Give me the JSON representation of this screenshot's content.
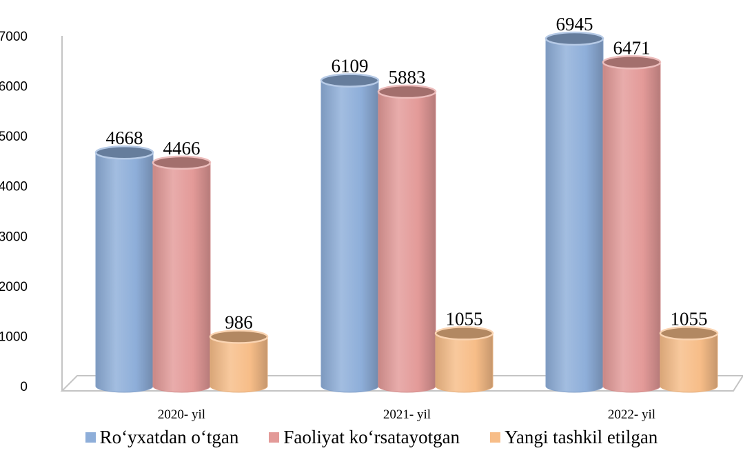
{
  "chart_data": {
    "type": "bar",
    "categories": [
      "2020- yil",
      "2021- yil",
      "2022- yil"
    ],
    "series": [
      {
        "name": "Ro‘yxatdan o‘tgan",
        "values": [
          4668,
          6109,
          6945
        ],
        "color": "#8eaed9"
      },
      {
        "name": "Faoliyat ko‘rsatayotgan",
        "values": [
          4466,
          5883,
          6471
        ],
        "color": "#e39a98"
      },
      {
        "name": "Yangi tashkil etilgan",
        "values": [
          986,
          1055,
          1055
        ],
        "color": "#f7bd88"
      }
    ],
    "yticks": [
      "0",
      "1000",
      "2000",
      "3000",
      "4000",
      "5000",
      "6000",
      "7000"
    ],
    "ylim": [
      0,
      7000
    ],
    "legend_position": "bottom",
    "grid": false,
    "style": "3d-cylinder"
  }
}
